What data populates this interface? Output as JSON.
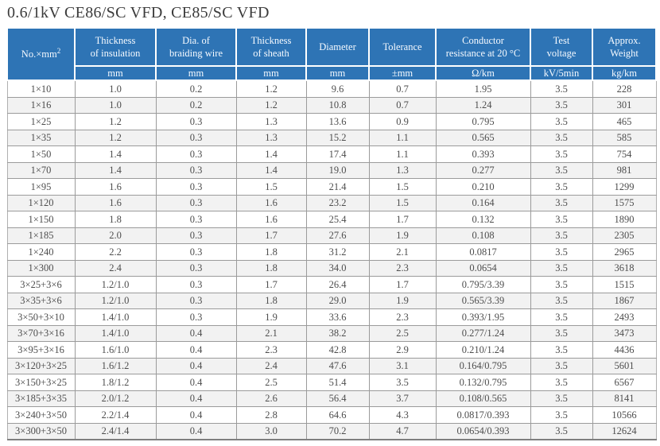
{
  "title": "0.6/1kV  CE86/SC VFD, CE85/SC VFD",
  "accent_color": "#2e74b5",
  "stripe_color": "#f2f2f2",
  "table": {
    "columns": [
      {
        "label": "No.×mm",
        "sup": "2",
        "unit": ""
      },
      {
        "label": "Thickness\nof insulation",
        "unit": "mm"
      },
      {
        "label": "Dia. of\nbraiding wire",
        "unit": "mm"
      },
      {
        "label": "Thickness\nof sheath",
        "unit": "mm"
      },
      {
        "label": "Diameter",
        "unit": "mm"
      },
      {
        "label": "Tolerance",
        "unit": "±mm"
      },
      {
        "label": "Conductor\nresistance at 20 °C",
        "unit": "Ω/km"
      },
      {
        "label": "Test\nvoltage",
        "unit": "kV/5min"
      },
      {
        "label": "Approx.\nWeight",
        "unit": "kg/km"
      }
    ],
    "rows": [
      [
        "1×10",
        "1.0",
        "0.2",
        "1.2",
        "9.6",
        "0.7",
        "1.95",
        "3.5",
        "228"
      ],
      [
        "1×16",
        "1.0",
        "0.2",
        "1.2",
        "10.8",
        "0.7",
        "1.24",
        "3.5",
        "301"
      ],
      [
        "1×25",
        "1.2",
        "0.3",
        "1.3",
        "13.6",
        "0.9",
        "0.795",
        "3.5",
        "465"
      ],
      [
        "1×35",
        "1.2",
        "0.3",
        "1.3",
        "15.2",
        "1.1",
        "0.565",
        "3.5",
        "585"
      ],
      [
        "1×50",
        "1.4",
        "0.3",
        "1.4",
        "17.4",
        "1.1",
        "0.393",
        "3.5",
        "754"
      ],
      [
        "1×70",
        "1.4",
        "0.3",
        "1.4",
        "19.0",
        "1.3",
        "0.277",
        "3.5",
        "981"
      ],
      [
        "1×95",
        "1.6",
        "0.3",
        "1.5",
        "21.4",
        "1.5",
        "0.210",
        "3.5",
        "1299"
      ],
      [
        "1×120",
        "1.6",
        "0.3",
        "1.6",
        "23.2",
        "1.5",
        "0.164",
        "3.5",
        "1575"
      ],
      [
        "1×150",
        "1.8",
        "0.3",
        "1.6",
        "25.4",
        "1.7",
        "0.132",
        "3.5",
        "1890"
      ],
      [
        "1×185",
        "2.0",
        "0.3",
        "1.7",
        "27.6",
        "1.9",
        "0.108",
        "3.5",
        "2305"
      ],
      [
        "1×240",
        "2.2",
        "0.3",
        "1.8",
        "31.2",
        "2.1",
        "0.0817",
        "3.5",
        "2965"
      ],
      [
        "1×300",
        "2.4",
        "0.3",
        "1.8",
        "34.0",
        "2.3",
        "0.0654",
        "3.5",
        "3618"
      ],
      [
        "3×25+3×6",
        "1.2/1.0",
        "0.3",
        "1.7",
        "26.4",
        "1.7",
        "0.795/3.39",
        "3.5",
        "1515"
      ],
      [
        "3×35+3×6",
        "1.2/1.0",
        "0.3",
        "1.8",
        "29.0",
        "1.9",
        "0.565/3.39",
        "3.5",
        "1867"
      ],
      [
        "3×50+3×10",
        "1.4/1.0",
        "0.3",
        "1.9",
        "33.6",
        "2.3",
        "0.393/1.95",
        "3.5",
        "2493"
      ],
      [
        "3×70+3×16",
        "1.4/1.0",
        "0.4",
        "2.1",
        "38.2",
        "2.5",
        "0.277/1.24",
        "3.5",
        "3473"
      ],
      [
        "3×95+3×16",
        "1.6/1.0",
        "0.4",
        "2.3",
        "42.8",
        "2.9",
        "0.210/1.24",
        "3.5",
        "4436"
      ],
      [
        "3×120+3×25",
        "1.6/1.2",
        "0.4",
        "2.4",
        "47.6",
        "3.1",
        "0.164/0.795",
        "3.5",
        "5601"
      ],
      [
        "3×150+3×25",
        "1.8/1.2",
        "0.4",
        "2.5",
        "51.4",
        "3.5",
        "0.132/0.795",
        "3.5",
        "6567"
      ],
      [
        "3×185+3×35",
        "2.0/1.2",
        "0.4",
        "2.6",
        "56.4",
        "3.7",
        "0.108/0.565",
        "3.5",
        "8141"
      ],
      [
        "3×240+3×50",
        "2.2/1.4",
        "0.4",
        "2.8",
        "64.6",
        "4.3",
        "0.0817/0.393",
        "3.5",
        "10566"
      ],
      [
        "3×300+3×50",
        "2.4/1.4",
        "0.4",
        "3.0",
        "70.2",
        "4.7",
        "0.0654/0.393",
        "3.5",
        "12624"
      ]
    ]
  }
}
